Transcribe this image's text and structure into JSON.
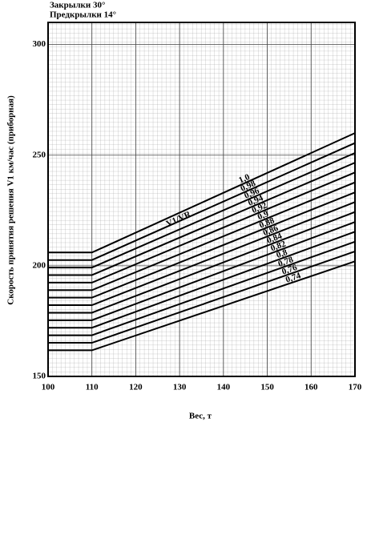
{
  "chart_data": {
    "type": "line",
    "title_lines": [
      "Закрылки 30°",
      "Предкрылки 14°"
    ],
    "xlabel": "Вес, т",
    "ylabel": "Скорость принятия решения V1 км/час (приборная)",
    "annotation": "V1/VR",
    "x": [
      100,
      110,
      170
    ],
    "xlim": [
      100,
      170
    ],
    "xticks": [
      100,
      110,
      120,
      130,
      140,
      150,
      160,
      170
    ],
    "ylim": [
      150,
      310
    ],
    "yticks": [
      150,
      200,
      250,
      300
    ],
    "grid": true,
    "color": "#000000",
    "series": [
      {
        "name": "1,0",
        "values": [
          206,
          206,
          260
        ]
      },
      {
        "name": "0,98",
        "values": [
          202.6,
          202.6,
          255.5
        ]
      },
      {
        "name": "0,96",
        "values": [
          199.2,
          199.2,
          251
        ]
      },
      {
        "name": "0,94",
        "values": [
          195.8,
          195.8,
          246.6
        ]
      },
      {
        "name": "0,92",
        "values": [
          192.4,
          192.4,
          242.2
        ]
      },
      {
        "name": "0,9",
        "values": [
          189,
          189,
          237.7
        ]
      },
      {
        "name": "0,88",
        "values": [
          185.6,
          185.6,
          233.2
        ]
      },
      {
        "name": "0,86",
        "values": [
          182.2,
          182.2,
          228.8
        ]
      },
      {
        "name": "0,84",
        "values": [
          178.8,
          178.8,
          224.3
        ]
      },
      {
        "name": "0,82",
        "values": [
          175.4,
          175.4,
          219.8
        ]
      },
      {
        "name": "0,8",
        "values": [
          172,
          172,
          215.4
        ]
      },
      {
        "name": "0,78",
        "values": [
          168.6,
          168.6,
          210.9
        ]
      },
      {
        "name": "0,76",
        "values": [
          165.2,
          165.2,
          206.5
        ]
      },
      {
        "name": "0,74",
        "values": [
          161.8,
          161.8,
          202
        ]
      }
    ]
  }
}
